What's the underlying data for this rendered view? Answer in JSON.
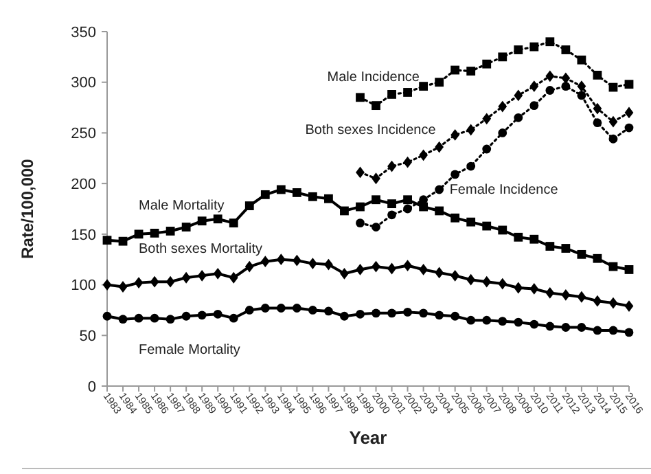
{
  "chart_data": {
    "type": "line",
    "xlabel": "Year",
    "ylabel": "Rate/100,000",
    "categories": [
      "1983",
      "1984",
      "1985",
      "1986",
      "1987",
      "1988",
      "1989",
      "1990",
      "1991",
      "1992",
      "1993",
      "1994",
      "1995",
      "1996",
      "1997",
      "1998",
      "1999",
      "2000",
      "2001",
      "2002",
      "2003",
      "2004",
      "2005",
      "2006",
      "2007",
      "2008",
      "2009",
      "2010",
      "2011",
      "2012",
      "2013",
      "2014",
      "2015",
      "2016"
    ],
    "ylim": [
      0,
      350
    ],
    "yticks": [
      0,
      50,
      100,
      150,
      200,
      250,
      300,
      350
    ],
    "grid": false,
    "series": [
      {
        "name": "Male Mortality",
        "color": "#000000",
        "marker": "square",
        "line_style": "solid",
        "values": [
          144,
          143,
          150,
          151,
          153,
          157,
          163,
          165,
          161,
          178,
          189,
          194,
          191,
          187,
          185,
          173,
          177,
          184,
          180,
          184,
          177,
          173,
          166,
          162,
          158,
          154,
          147,
          145,
          138,
          136,
          130,
          126,
          118,
          115
        ]
      },
      {
        "name": "Both sexes Mortality",
        "color": "#000000",
        "marker": "diamond",
        "line_style": "solid",
        "values": [
          100,
          98,
          102,
          103,
          103,
          107,
          109,
          111,
          107,
          118,
          123,
          125,
          124,
          121,
          120,
          111,
          115,
          118,
          116,
          119,
          115,
          112,
          109,
          105,
          103,
          101,
          97,
          96,
          92,
          90,
          88,
          84,
          82,
          79
        ]
      },
      {
        "name": "Female Mortality",
        "color": "#000000",
        "marker": "circle",
        "line_style": "solid",
        "values": [
          69,
          66,
          67,
          67,
          66,
          69,
          70,
          71,
          67,
          75,
          77,
          77,
          77,
          75,
          74,
          69,
          71,
          72,
          72,
          73,
          72,
          70,
          69,
          65,
          65,
          64,
          63,
          61,
          59,
          58,
          58,
          55,
          55,
          53
        ]
      },
      {
        "name": "Male Incidence",
        "color": "#000000",
        "marker": "square",
        "line_style": "dotted",
        "values": [
          null,
          null,
          null,
          null,
          null,
          null,
          null,
          null,
          null,
          null,
          null,
          null,
          null,
          null,
          null,
          null,
          285,
          277,
          288,
          290,
          296,
          300,
          312,
          311,
          318,
          325,
          332,
          335,
          340,
          332,
          322,
          307,
          295,
          298
        ]
      },
      {
        "name": "Both sexes Incidence",
        "color": "#000000",
        "marker": "diamond",
        "line_style": "dotted",
        "values": [
          null,
          null,
          null,
          null,
          null,
          null,
          null,
          null,
          null,
          null,
          null,
          null,
          null,
          null,
          null,
          null,
          211,
          205,
          217,
          221,
          228,
          236,
          248,
          253,
          264,
          276,
          287,
          296,
          306,
          304,
          296,
          274,
          261,
          270
        ]
      },
      {
        "name": "Female Incidence",
        "color": "#000000",
        "marker": "circle",
        "line_style": "dotted",
        "values": [
          null,
          null,
          null,
          null,
          null,
          null,
          null,
          null,
          null,
          null,
          null,
          null,
          null,
          null,
          null,
          null,
          161,
          157,
          169,
          175,
          184,
          194,
          209,
          217,
          234,
          250,
          265,
          277,
          292,
          296,
          287,
          260,
          244,
          255
        ]
      }
    ]
  }
}
